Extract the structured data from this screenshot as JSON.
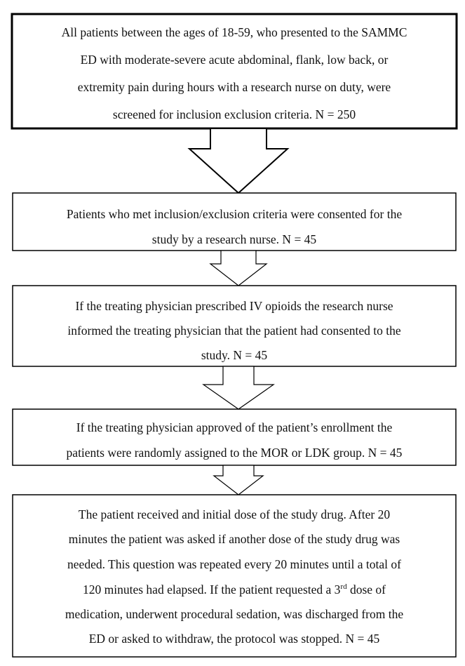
{
  "nodes": [
    {
      "lines": [
        "All patients between the ages of 18-59, who presented to the SAMMC",
        "ED with moderate-severe acute abdominal, flank, low back, or",
        "extremity pain during hours with a research nurse on duty, were",
        "screened for inclusion exclusion criteria. N = 250"
      ]
    },
    {
      "lines": [
        "Patients who met inclusion/exclusion criteria were consented for the",
        "study by a research nurse. N = 45"
      ]
    },
    {
      "lines": [
        "If the treating physician prescribed IV opioids the research nurse",
        "informed the treating physician that the patient had consented to the",
        "study. N = 45"
      ]
    },
    {
      "lines": [
        "If the treating physician approved of the patient’s enrollment the",
        "patients were randomly assigned to the MOR or LDK group. N = 45"
      ]
    },
    {
      "lines": [
        "The patient received and initial dose of the study drug.  After 20",
        "minutes the patient was asked if another dose of the study drug was",
        "needed.  This question was repeated every 20 minutes until a total of",
        {
          "before": "120 minutes had elapsed.  If the patient requested a 3",
          "sup": "rd",
          "after": " dose of"
        },
        "medication, underwent procedural sedation, was discharged from the",
        "ED or asked to withdraw, the protocol was stopped. N = 45"
      ]
    }
  ]
}
